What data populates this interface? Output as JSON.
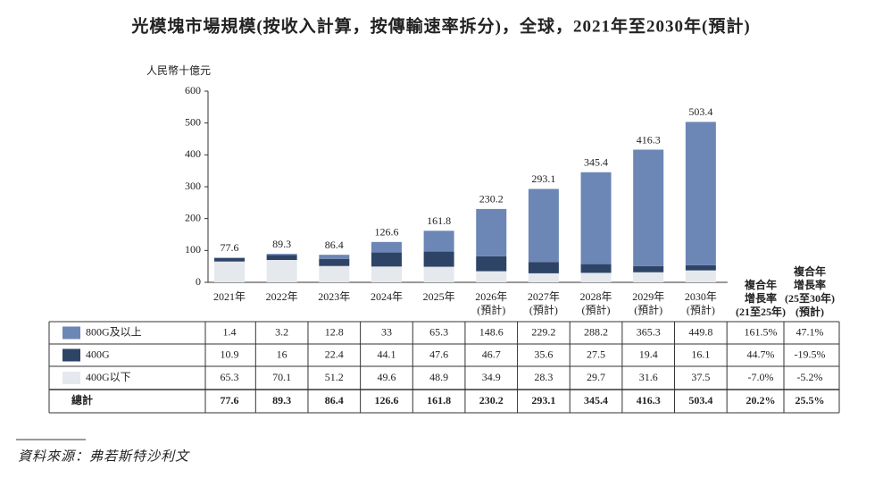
{
  "chart_data": {
    "type": "stacked_bar",
    "title": "光模塊市場規模(按收入計算，按傳輸速率拆分)，全球，2021年至2030年(預計)",
    "y_label": "人民幣十億元",
    "categories": [
      [
        "2021年"
      ],
      [
        "2022年"
      ],
      [
        "2023年"
      ],
      [
        "2024年"
      ],
      [
        "2025年"
      ],
      [
        "2026年",
        "(預計)"
      ],
      [
        "2027年",
        "(預計)"
      ],
      [
        "2028年",
        "(預計)"
      ],
      [
        "2029年",
        "(預計)"
      ],
      [
        "2030年",
        "(預計)"
      ]
    ],
    "series": [
      {
        "name": "800G及以上",
        "color": "#6c86b5",
        "values": [
          1.4,
          3.2,
          12.8,
          33.0,
          65.3,
          148.6,
          229.2,
          288.2,
          365.3,
          449.8
        ],
        "cagr": [
          "161.5%",
          "47.1%"
        ]
      },
      {
        "name": "400G",
        "color": "#2d4467",
        "values": [
          10.9,
          16.0,
          22.4,
          44.1,
          47.6,
          46.7,
          35.6,
          27.5,
          19.4,
          16.1
        ],
        "cagr": [
          "44.7%",
          "-19.5%"
        ]
      },
      {
        "name": "400G以下",
        "color": "#e5e8ed",
        "values": [
          65.3,
          70.1,
          51.2,
          49.6,
          48.9,
          34.9,
          28.3,
          29.7,
          31.6,
          37.5
        ],
        "cagr": [
          "-7.0%",
          "-5.2%"
        ]
      }
    ],
    "total_name": "總計",
    "totals": [
      77.6,
      89.3,
      86.4,
      126.6,
      161.8,
      230.2,
      293.1,
      345.4,
      416.3,
      503.4
    ],
    "total_cagr": [
      "20.2%",
      "25.5%"
    ],
    "cagr_headers": [
      [
        "複合年",
        "增長率",
        "(21至25年)"
      ],
      [
        "複合年",
        "增長率",
        "(25至30年)",
        "(預計)"
      ]
    ],
    "ylim": [
      0,
      600
    ],
    "yticks": [
      0,
      100,
      200,
      300,
      400,
      500,
      600
    ],
    "source": "資料來源：弗若斯特沙利文"
  }
}
